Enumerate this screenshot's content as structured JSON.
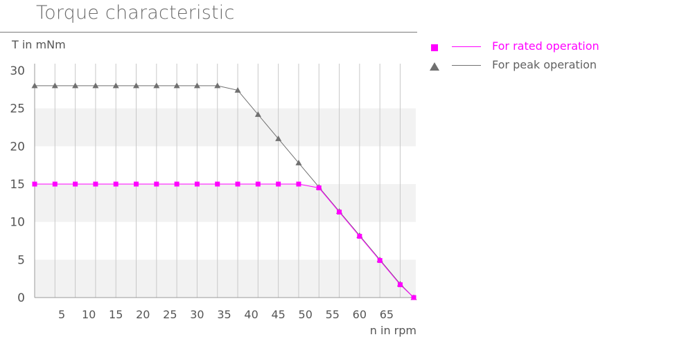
{
  "chart_data": {
    "type": "line",
    "title": "Torque characteristic",
    "xlabel": "n in rpm",
    "ylabel": "T in mNm",
    "xlim": [
      0,
      70
    ],
    "ylim": [
      0,
      30
    ],
    "x_ticks": [
      5,
      10,
      15,
      20,
      25,
      30,
      35,
      40,
      45,
      50,
      55,
      60,
      65
    ],
    "y_ticks": [
      0,
      5,
      10,
      15,
      20,
      25,
      30
    ],
    "grid": "vertical lines every 3.75 rpm, alternating horizontal bands",
    "legend_placement": "right",
    "series": [
      {
        "name": "For rated operation",
        "color": "#ff00ff",
        "marker": "square",
        "x": [
          0,
          3.75,
          7.5,
          11.25,
          15,
          18.75,
          22.5,
          26.25,
          30,
          33.75,
          37.5,
          41.25,
          45,
          48.75,
          52.5,
          56.25,
          60,
          63.75,
          67.5,
          70
        ],
        "y": [
          15,
          15,
          15,
          15,
          15,
          15,
          15,
          15,
          15,
          15,
          15,
          15,
          15,
          15,
          14.5,
          11.3,
          8.1,
          4.9,
          1.7,
          0
        ]
      },
      {
        "name": "For peak operation",
        "color": "#707070",
        "marker": "triangle",
        "x": [
          0,
          3.75,
          7.5,
          11.25,
          15,
          18.75,
          22.5,
          26.25,
          30,
          33.75,
          37.5,
          41.25,
          45,
          48.75,
          52.5,
          56.25,
          60,
          63.75,
          67.5,
          70
        ],
        "y": [
          28,
          28,
          28,
          28,
          28,
          28,
          28,
          28,
          28,
          28,
          27.4,
          24.2,
          21,
          17.8,
          14.6,
          11.4,
          8.2,
          5,
          1.8,
          0
        ]
      }
    ]
  }
}
